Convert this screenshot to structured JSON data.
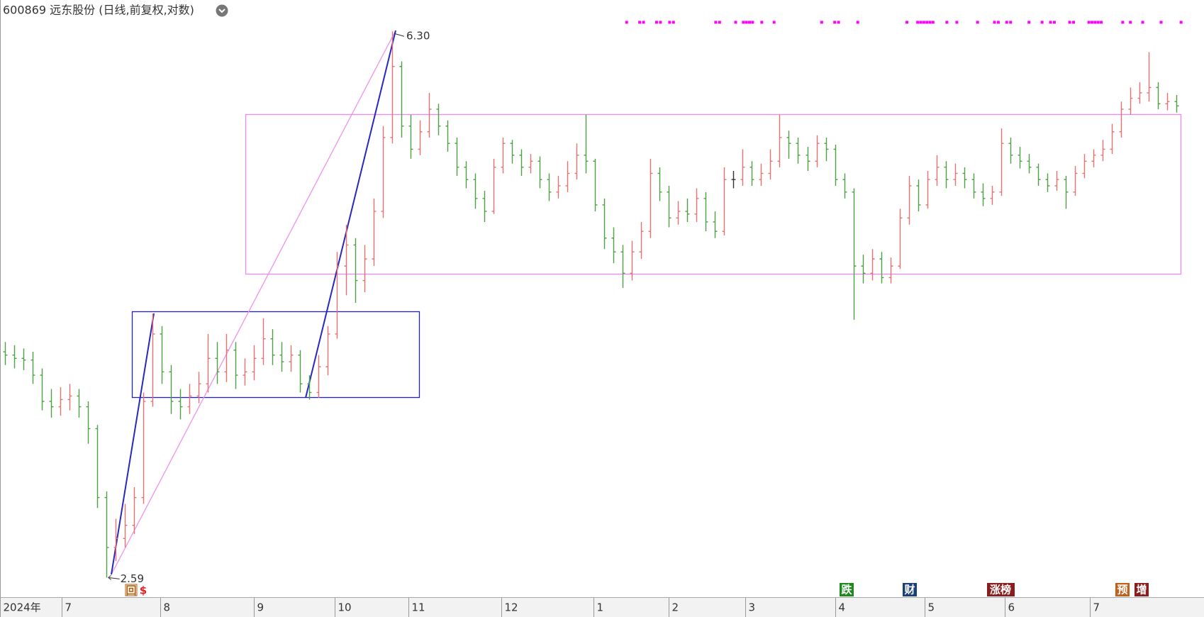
{
  "chart_data": {
    "type": "ohlc",
    "title": "600869 远东股份 (日线,前复权,对数)",
    "log_scale": true,
    "ylim": [
      2.5,
      6.63
    ],
    "xlim": [
      -0.5,
      130
    ],
    "up_color": "#e8716f",
    "down_color": "#4f9f45",
    "flat_color": "#333333",
    "xticks": [
      {
        "value": -0.5,
        "label": "2024年"
      },
      {
        "value": 6.2,
        "label": "7"
      },
      {
        "value": 16.9,
        "label": "8"
      },
      {
        "value": 27,
        "label": "9"
      },
      {
        "value": 35.8,
        "label": "10"
      },
      {
        "value": 43.8,
        "label": "11"
      },
      {
        "value": 53.8,
        "label": "12"
      },
      {
        "value": 63.8,
        "label": "1"
      },
      {
        "value": 72,
        "label": "2"
      },
      {
        "value": 80.3,
        "label": "3"
      },
      {
        "value": 90,
        "label": "4"
      },
      {
        "value": 99.7,
        "label": "5"
      },
      {
        "value": 108.4,
        "label": "6"
      },
      {
        "value": 117.6,
        "label": "7"
      }
    ],
    "open": [
      3.74,
      3.72,
      3.7,
      3.69,
      3.6,
      3.45,
      3.42,
      3.46,
      3.48,
      3.42,
      3.3,
      2.95,
      2.72,
      2.76,
      2.82,
      2.95,
      3.45,
      3.85,
      3.62,
      3.45,
      3.42,
      3.48,
      3.55,
      3.7,
      3.62,
      3.75,
      3.6,
      3.62,
      3.7,
      3.82,
      3.72,
      3.68,
      3.72,
      3.55,
      3.5,
      3.65,
      3.85,
      4.3,
      4.45,
      4.2,
      4.35,
      4.7,
      5.3,
      5.95,
      5.4,
      5.2,
      5.35,
      5.55,
      5.4,
      5.25,
      5.05,
      4.95,
      4.8,
      4.7,
      5.05,
      5.25,
      5.15,
      5.05,
      5.1,
      4.95,
      4.85,
      4.9,
      5.0,
      5.15,
      5.1,
      4.75,
      4.5,
      4.4,
      4.25,
      4.4,
      4.55,
      5.0,
      4.85,
      4.65,
      4.7,
      4.68,
      4.8,
      4.62,
      4.55,
      4.95,
      4.95,
      5.05,
      4.95,
      5.0,
      5.1,
      5.3,
      5.25,
      5.15,
      5.1,
      5.25,
      5.2,
      4.95,
      4.85,
      4.3,
      4.25,
      4.35,
      4.22,
      4.3,
      4.65,
      4.9,
      4.75,
      4.95,
      5.05,
      4.95,
      5.0,
      4.95,
      4.85,
      4.8,
      4.85,
      5.25,
      5.15,
      5.1,
      5.05,
      4.95,
      4.9,
      4.95,
      4.85,
      5.0,
      5.1,
      5.15,
      5.2,
      5.35,
      5.55,
      5.65,
      5.7,
      5.75,
      5.6,
      5.62
    ],
    "high": [
      3.8,
      3.78,
      3.76,
      3.74,
      3.64,
      3.52,
      3.53,
      3.55,
      3.52,
      3.45,
      3.32,
      2.98,
      2.85,
      2.92,
      3.0,
      3.5,
      3.98,
      3.9,
      3.66,
      3.52,
      3.55,
      3.62,
      3.85,
      3.8,
      3.85,
      3.8,
      3.7,
      3.78,
      3.95,
      3.88,
      3.8,
      3.78,
      3.75,
      3.6,
      3.72,
      3.9,
      4.4,
      4.6,
      4.5,
      4.45,
      4.8,
      5.4,
      6.3,
      6.0,
      5.5,
      5.45,
      5.7,
      5.6,
      5.45,
      5.3,
      5.1,
      5.0,
      4.86,
      5.12,
      5.3,
      5.28,
      5.2,
      5.16,
      5.14,
      5.0,
      4.98,
      5.1,
      5.25,
      5.5,
      5.12,
      4.8,
      4.58,
      4.45,
      4.48,
      4.62,
      5.12,
      5.05,
      4.9,
      4.78,
      4.8,
      4.88,
      4.85,
      4.7,
      5.05,
      5.02,
      5.2,
      5.1,
      5.08,
      5.2,
      5.5,
      5.36,
      5.3,
      5.22,
      5.32,
      5.3,
      5.24,
      5.0,
      4.88,
      4.38,
      4.42,
      4.4,
      4.36,
      4.72,
      4.98,
      4.95,
      5.02,
      5.15,
      5.1,
      5.08,
      5.05,
      5.0,
      4.92,
      4.9,
      5.38,
      5.3,
      5.22,
      5.16,
      5.08,
      5.0,
      5.02,
      4.98,
      5.06,
      5.16,
      5.2,
      5.28,
      5.42,
      5.62,
      5.75,
      5.8,
      6.09,
      5.8,
      5.7,
      5.68
    ],
    "low": [
      3.66,
      3.64,
      3.63,
      3.55,
      3.4,
      3.36,
      3.37,
      3.4,
      3.36,
      3.22,
      2.9,
      2.59,
      2.66,
      2.72,
      2.78,
      2.92,
      3.42,
      3.55,
      3.38,
      3.35,
      3.38,
      3.44,
      3.5,
      3.55,
      3.56,
      3.52,
      3.54,
      3.57,
      3.66,
      3.66,
      3.62,
      3.62,
      3.5,
      3.46,
      3.47,
      3.6,
      3.82,
      4.1,
      4.05,
      4.12,
      4.3,
      4.65,
      5.25,
      5.3,
      5.12,
      5.15,
      5.3,
      5.32,
      5.18,
      4.98,
      4.88,
      4.72,
      4.62,
      4.68,
      5.0,
      5.08,
      4.98,
      5.0,
      4.88,
      4.78,
      4.8,
      4.85,
      4.95,
      5.0,
      4.7,
      4.42,
      4.32,
      4.15,
      4.2,
      4.35,
      4.5,
      4.78,
      4.58,
      4.6,
      4.62,
      4.62,
      4.55,
      4.5,
      4.52,
      4.88,
      4.9,
      4.9,
      4.9,
      4.95,
      5.05,
      5.12,
      5.08,
      5.02,
      5.05,
      5.1,
      4.9,
      4.8,
      3.94,
      4.18,
      4.2,
      4.18,
      4.18,
      4.28,
      4.6,
      4.7,
      4.72,
      4.9,
      4.88,
      4.9,
      4.88,
      4.8,
      4.74,
      4.75,
      4.82,
      5.08,
      5.04,
      5.0,
      4.9,
      4.85,
      4.86,
      4.72,
      4.82,
      4.96,
      5.05,
      5.1,
      5.16,
      5.3,
      5.5,
      5.6,
      5.62,
      5.55,
      5.54,
      5.52
    ],
    "close": [
      3.72,
      3.7,
      3.69,
      3.6,
      3.45,
      3.42,
      3.46,
      3.48,
      3.42,
      3.3,
      2.95,
      2.72,
      2.76,
      2.82,
      2.95,
      3.45,
      3.85,
      3.62,
      3.45,
      3.42,
      3.48,
      3.55,
      3.7,
      3.62,
      3.75,
      3.6,
      3.62,
      3.7,
      3.82,
      3.72,
      3.68,
      3.72,
      3.55,
      3.5,
      3.65,
      3.85,
      4.3,
      4.45,
      4.2,
      4.35,
      4.7,
      5.3,
      5.95,
      5.4,
      5.2,
      5.35,
      5.55,
      5.4,
      5.25,
      5.05,
      4.95,
      4.8,
      4.7,
      5.05,
      5.25,
      5.15,
      5.05,
      5.1,
      4.95,
      4.85,
      4.9,
      5.0,
      5.15,
      5.1,
      4.75,
      4.5,
      4.4,
      4.25,
      4.4,
      4.55,
      5.0,
      4.85,
      4.65,
      4.7,
      4.68,
      4.8,
      4.62,
      4.55,
      4.95,
      4.95,
      5.05,
      4.95,
      5.0,
      5.1,
      5.3,
      5.25,
      5.15,
      5.1,
      5.25,
      5.2,
      4.95,
      4.85,
      4.3,
      4.25,
      4.35,
      4.22,
      4.3,
      4.65,
      4.9,
      4.75,
      4.95,
      5.05,
      4.95,
      5.0,
      4.95,
      4.85,
      4.8,
      4.85,
      5.25,
      5.15,
      5.1,
      5.05,
      4.95,
      4.9,
      4.95,
      4.85,
      5.0,
      5.1,
      5.15,
      5.2,
      5.35,
      5.55,
      5.65,
      5.7,
      5.75,
      5.6,
      5.62,
      5.58
    ],
    "annotations": {
      "high_label": "6.30",
      "low_label": "2.59"
    },
    "markers": [
      "回",
      "$",
      "跌",
      "财",
      "涨榜",
      "预",
      "增"
    ]
  }
}
